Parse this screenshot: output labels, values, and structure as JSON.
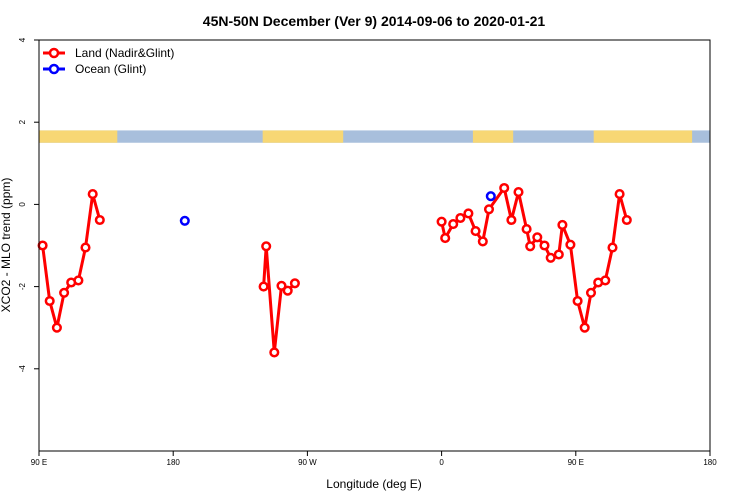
{
  "chart_data": {
    "type": "line",
    "title": "45N-50N December (Ver 9)   2014-09-06 to 2020-01-21",
    "xlabel": "Longitude (deg E)",
    "ylabel": "XCO2 - MLO trend (ppm)",
    "xlim": [
      90,
      240
    ],
    "ylim": [
      -6,
      4
    ],
    "x_ticks": [
      {
        "value": 90,
        "label": "90 E"
      },
      {
        "value": 120,
        "label": "180"
      },
      {
        "value": 150,
        "label": "90 W"
      },
      {
        "value": 180,
        "label": "0"
      },
      {
        "value": 210,
        "label": "90 E"
      },
      {
        "value": 240,
        "label": "180"
      }
    ],
    "y_ticks": [
      -4,
      -2,
      0,
      2,
      4
    ],
    "grid": false,
    "legend_position": "top-left",
    "land_ocean_strip": {
      "y_range": [
        1.5,
        1.8
      ],
      "land_color": "#f7d774",
      "ocean_color": "#a8bfdc"
    },
    "series": [
      {
        "name": "Land (Nadir&Glint)",
        "color": "#ff0000",
        "segments": [
          [
            [
              90.8,
              -1.0
            ],
            [
              92.4,
              -2.35
            ],
            [
              94.0,
              -3.0
            ],
            [
              95.6,
              -2.15
            ],
            [
              97.2,
              -1.9
            ],
            [
              98.8,
              -1.85
            ],
            [
              100.4,
              -1.05
            ],
            [
              102.0,
              0.25
            ],
            [
              103.6,
              -0.38
            ]
          ],
          [
            [
              140.2,
              -2.0
            ],
            [
              140.8,
              -1.02
            ],
            [
              142.6,
              -3.6
            ],
            [
              144.2,
              -1.98
            ],
            [
              145.6,
              -2.1
            ],
            [
              147.2,
              -1.92
            ]
          ],
          [
            [
              180.0,
              -0.42
            ],
            [
              180.8,
              -0.82
            ],
            [
              182.6,
              -0.48
            ],
            [
              184.2,
              -0.33
            ],
            [
              186.0,
              -0.22
            ],
            [
              187.6,
              -0.65
            ],
            [
              189.2,
              -0.9
            ],
            [
              190.6,
              -0.12
            ],
            [
              194.0,
              0.4
            ],
            [
              195.6,
              -0.38
            ],
            [
              197.2,
              0.3
            ],
            [
              199.0,
              -0.6
            ],
            [
              199.8,
              -1.02
            ],
            [
              201.4,
              -0.8
            ],
            [
              203.0,
              -1.0
            ],
            [
              204.4,
              -1.3
            ],
            [
              206.2,
              -1.22
            ],
            [
              207.0,
              -0.5
            ],
            [
              208.8,
              -0.98
            ],
            [
              210.4,
              -2.35
            ],
            [
              212.0,
              -3.0
            ],
            [
              213.4,
              -2.15
            ],
            [
              215.0,
              -1.9
            ],
            [
              216.6,
              -1.85
            ],
            [
              218.2,
              -1.05
            ],
            [
              219.8,
              0.25
            ],
            [
              221.4,
              -0.38
            ]
          ]
        ]
      },
      {
        "name": "Ocean (Glint)",
        "color": "#0000ff",
        "segments": [
          [
            [
              122.6,
              -0.4
            ]
          ],
          [
            [
              191.0,
              0.2
            ]
          ]
        ]
      }
    ]
  }
}
